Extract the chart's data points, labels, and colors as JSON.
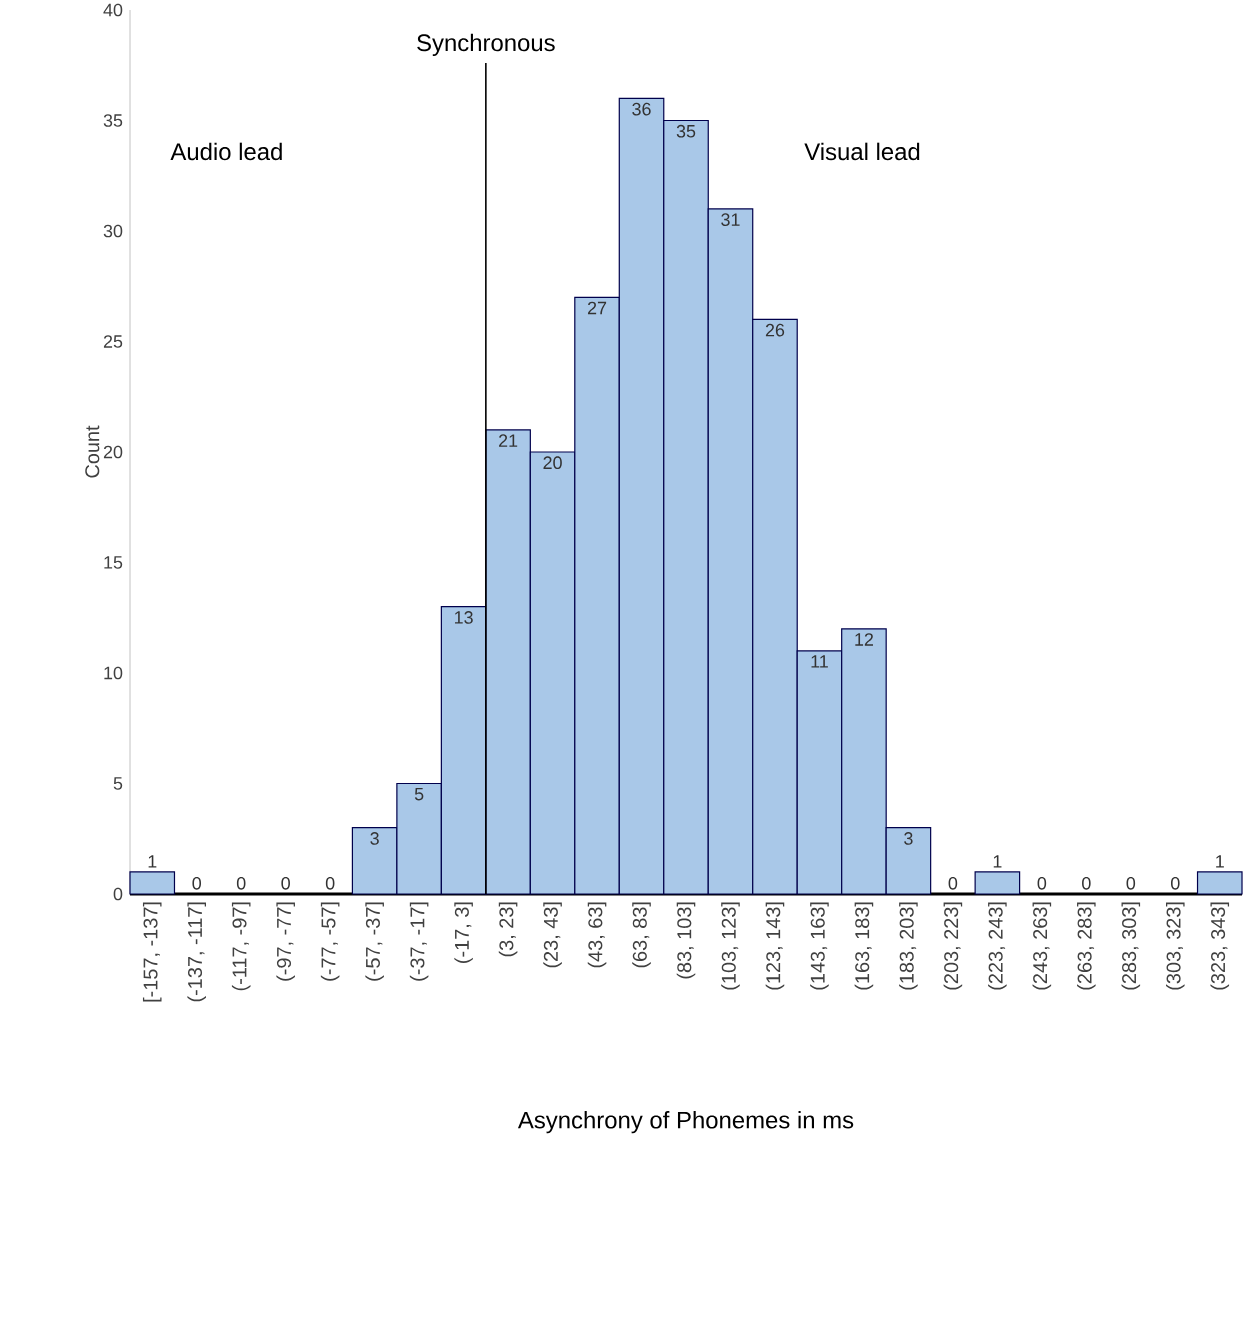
{
  "chart_data": {
    "type": "bar",
    "categories": [
      "[-157, -137]",
      "(-137, -117]",
      "(-117, -97]",
      "(-97, -77]",
      "(-77, -57]",
      "(-57, -37]",
      "(-37, -17]",
      "(-17, 3]",
      "(3, 23]",
      "(23, 43]",
      "(43, 63]",
      "(63, 83]",
      "(83, 103]",
      "(103, 123]",
      "(123, 143]",
      "(143, 163]",
      "(163, 183]",
      "(183, 203]",
      "(203, 223]",
      "(223, 243]",
      "(243, 263]",
      "(263, 283]",
      "(283, 303]",
      "(303, 323]",
      "(323, 343]"
    ],
    "values": [
      1,
      0,
      0,
      0,
      0,
      3,
      5,
      13,
      21,
      20,
      27,
      36,
      35,
      31,
      26,
      11,
      12,
      3,
      0,
      1,
      0,
      0,
      0,
      0,
      1
    ],
    "color": "#a9c8e8",
    "ylim": [
      0,
      40
    ],
    "yticks": [
      0,
      5,
      10,
      15,
      20,
      25,
      30,
      35,
      40
    ],
    "xlabel": "Asynchrony of Phonemes in ms",
    "ylabel": "Count",
    "data_labels": true,
    "grid": false,
    "annotations": [
      "Audio lead",
      "Visual lead",
      "Synchronous"
    ]
  }
}
